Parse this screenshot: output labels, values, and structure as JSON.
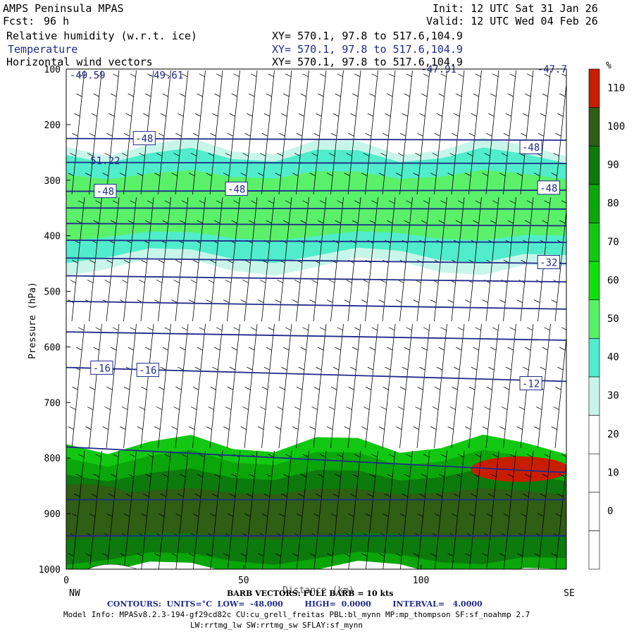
{
  "header": {
    "title": "AMPS Peninsula MPAS",
    "init": "Init: 12 UTC Sat 31 Jan 26",
    "fcst_label": "Fcst:",
    "fcst_value": "96 h",
    "valid": "Valid: 12 UTC Wed 04 Feb 26",
    "fields": [
      {
        "name": "Relative humidity (w.r.t. ice)",
        "xy": "XY= 570.1, 97.8 to 517.6,104.9"
      },
      {
        "name": "Temperature",
        "xy": "XY= 570.1, 97.8 to 517.6,104.9"
      },
      {
        "name": "Horizontal wind vectors",
        "xy": "XY= 570.1, 97.8 to 517.6,104.9"
      }
    ]
  },
  "colors": {
    "contour": "#1f2a8a",
    "terrain": "#ffffff",
    "rh_fills": [
      "#ffffff",
      "#ffffff",
      "#ffffff",
      "#ffffff",
      "#c8f5ea",
      "#50eccb",
      "#5af06a",
      "#10e010",
      "#12c812",
      "#0aa60a",
      "#0c7a0c",
      "#2f5e14",
      "#c81e00"
    ]
  },
  "chart_data": {
    "type": "heatmap",
    "title": "",
    "xlabel": "Distance (km)",
    "ylabel": "Pressure (hPa)",
    "xlim": [
      0,
      141
    ],
    "ylim": [
      1000,
      100
    ],
    "x_ticks": [
      0,
      50,
      100
    ],
    "y_ticks": [
      100,
      200,
      300,
      400,
      500,
      600,
      700,
      800,
      900,
      1000
    ],
    "x_endpoints": {
      "left": "NW",
      "right": "SE"
    },
    "colorbar": {
      "unit": "%",
      "tick_labels": [
        "0",
        "10",
        "20",
        "30",
        "40",
        "50",
        "60",
        "70",
        "80",
        "90",
        "100",
        "110"
      ],
      "levels": [
        -10,
        0,
        10,
        20,
        30,
        40,
        50,
        60,
        70,
        80,
        90,
        100,
        110,
        120
      ]
    },
    "rh_layers": [
      {
        "p_top": 240,
        "p_bot": 455,
        "rh": 35
      },
      {
        "p_top": 255,
        "p_bot": 435,
        "rh": 45
      },
      {
        "p_top": 290,
        "p_bot": 400,
        "rh": 50
      },
      {
        "p_top": 775,
        "p_bot": 1000,
        "rh": 75
      },
      {
        "p_top": 800,
        "p_bot": 1000,
        "rh": 85
      },
      {
        "p_top": 830,
        "p_bot": 980,
        "rh": 95
      },
      {
        "p_top": 860,
        "p_bot": 940,
        "rh": 105
      }
    ],
    "rh_spots": [
      {
        "x": 128,
        "p": 820,
        "rh": 115
      },
      {
        "x": 4,
        "p": 870,
        "rh": 105
      }
    ],
    "temperature_contours": [
      {
        "x": [
          0,
          141
        ],
        "p": [
          225,
          228
        ]
      },
      {
        "x": [
          0,
          141
        ],
        "p": [
          268,
          270
        ]
      },
      {
        "x": [
          0,
          141
        ],
        "p": [
          320,
          318
        ]
      },
      {
        "x": [
          0,
          141
        ],
        "p": [
          350,
          352
        ]
      },
      {
        "x": [
          0,
          141
        ],
        "p": [
          378,
          382
        ]
      },
      {
        "x": [
          0,
          141
        ],
        "p": [
          408,
          412
        ]
      },
      {
        "x": [
          0,
          141
        ],
        "p": [
          440,
          450
        ]
      },
      {
        "x": [
          0,
          141
        ],
        "p": [
          472,
          483
        ]
      },
      {
        "x": [
          0,
          141
        ],
        "p": [
          518,
          532
        ]
      },
      {
        "x": [
          0,
          141
        ],
        "p": [
          573,
          588
        ]
      },
      {
        "x": [
          0,
          141
        ],
        "p": [
          637,
          662
        ]
      },
      {
        "x": [
          0,
          141
        ],
        "p": [
          780,
          826
        ]
      },
      {
        "x": [
          0,
          141
        ],
        "p": [
          875,
          875
        ]
      },
      {
        "x": [
          0,
          141
        ],
        "p": [
          940,
          940
        ]
      }
    ],
    "contour_labels": [
      {
        "text": "-49.59",
        "x": 6,
        "p": 111
      },
      {
        "text": "-49.61",
        "x": 28,
        "p": 111
      },
      {
        "text": "-47.91",
        "x": 105,
        "p": 100
      },
      {
        "text": "-47.7",
        "x": 137,
        "p": 100
      },
      {
        "text": "-48",
        "x": 22,
        "p": 225,
        "boxed": true
      },
      {
        "text": "-48",
        "x": 131,
        "p": 241,
        "boxed": true
      },
      {
        "text": "51.22",
        "x": 11,
        "p": 265
      },
      {
        "text": "-48",
        "x": 11,
        "p": 320,
        "boxed": true
      },
      {
        "text": "-48",
        "x": 48,
        "p": 316,
        "boxed": true
      },
      {
        "text": "-48",
        "x": 136,
        "p": 314,
        "boxed": true
      },
      {
        "text": "-32",
        "x": 136,
        "p": 448,
        "boxed": true
      },
      {
        "text": "-16",
        "x": 10,
        "p": 638,
        "boxed": true
      },
      {
        "text": "-16",
        "x": 23,
        "p": 642,
        "boxed": true
      },
      {
        "text": "-12",
        "x": 131,
        "p": 666,
        "boxed": true
      }
    ]
  },
  "footer": {
    "axis_title_overlap": "BARB VECTORS: FULL BARB = 10 kts",
    "contours": "CONTOURS:  UNITS=°C  LOW=  -48.000        HIGH=  0.0000        INTERVAL=   4.0000",
    "model_info": "Model Info: MPASv8.2.3-194-gf29cd82c CU:cu_grell_freitas PBL:bl_mynn MP:mp_thompson SF:sf_noahmp 2.7",
    "model_info2": "LW:rrtmg_lw SW:rrtmg_sw SFLAY:sf_mynn"
  }
}
